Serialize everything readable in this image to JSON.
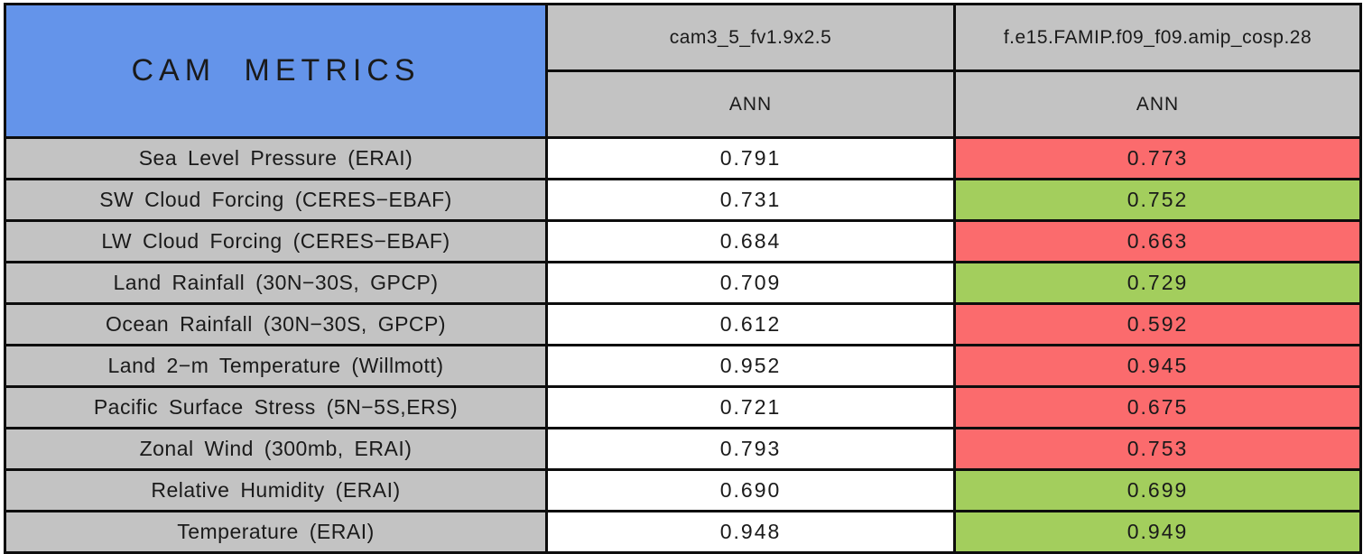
{
  "colors": {
    "header-blue": "#6494ea",
    "cell-gray": "#c3c3c3",
    "worse-red": "#fb6b6d",
    "better-green": "#a3ce5d",
    "border-black": "#0d0d0d"
  },
  "chart_data": {
    "type": "table",
    "title": "CAM METRICS",
    "columns": [
      {
        "model": "cam3_5_fv1.9x2.5",
        "season": "ANN"
      },
      {
        "model": "f.e15.FAMIP.f09_f09.amip_cosp.28",
        "season": "ANN"
      }
    ],
    "rows": [
      {
        "label": "Sea Level Pressure (ERAI)",
        "values": [
          "0.791",
          "0.773"
        ],
        "status": [
          "base",
          "worse"
        ]
      },
      {
        "label": "SW Cloud Forcing (CERES−EBAF)",
        "values": [
          "0.731",
          "0.752"
        ],
        "status": [
          "base",
          "better"
        ]
      },
      {
        "label": "LW Cloud Forcing (CERES−EBAF)",
        "values": [
          "0.684",
          "0.663"
        ],
        "status": [
          "base",
          "worse"
        ]
      },
      {
        "label": "Land Rainfall (30N−30S, GPCP)",
        "values": [
          "0.709",
          "0.729"
        ],
        "status": [
          "base",
          "better"
        ]
      },
      {
        "label": "Ocean Rainfall (30N−30S, GPCP)",
        "values": [
          "0.612",
          "0.592"
        ],
        "status": [
          "base",
          "worse"
        ]
      },
      {
        "label": "Land 2−m Temperature (Willmott)",
        "values": [
          "0.952",
          "0.945"
        ],
        "status": [
          "base",
          "worse"
        ]
      },
      {
        "label": "Pacific Surface Stress (5N−5S,ERS)",
        "values": [
          "0.721",
          "0.675"
        ],
        "status": [
          "base",
          "worse"
        ]
      },
      {
        "label": "Zonal Wind (300mb, ERAI)",
        "values": [
          "0.793",
          "0.753"
        ],
        "status": [
          "base",
          "worse"
        ]
      },
      {
        "label": "Relative Humidity (ERAI)",
        "values": [
          "0.690",
          "0.699"
        ],
        "status": [
          "base",
          "better"
        ]
      },
      {
        "label": "Temperature (ERAI)",
        "values": [
          "0.948",
          "0.949"
        ],
        "status": [
          "base",
          "better"
        ]
      }
    ]
  }
}
